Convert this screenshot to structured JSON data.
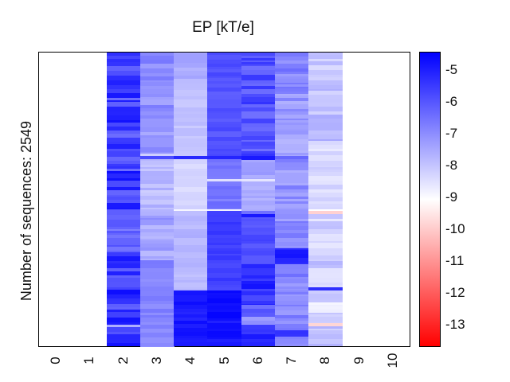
{
  "figure": {
    "title": "EP [kT/e]",
    "ylabel": "Number of sequences: 2549"
  },
  "chart_data": {
    "type": "heatmap",
    "title": "EP [kT/e]",
    "ylabel": "Number of sequences: 2549",
    "n_sequences": 2549,
    "x_ticks": [
      "0",
      "1",
      "2",
      "3",
      "4",
      "5",
      "6",
      "7",
      "8",
      "9",
      "10"
    ],
    "n_cols": 11,
    "empty_columns": [
      0,
      1,
      9,
      10
    ],
    "grid": false,
    "colorbar": {
      "tick_labels": [
        "-5",
        "-6",
        "-7",
        "-8",
        "-9",
        "-10",
        "-11",
        "-12",
        "-13"
      ],
      "tick_values": [
        -5,
        -6,
        -7,
        -8,
        -9,
        -10,
        -11,
        -12,
        -13
      ],
      "vmin": -13.68,
      "vmax": -4.45,
      "color_low": "#ff0000",
      "color_mid": "#ffffff",
      "color_high": "#0000ff",
      "position": "right"
    },
    "columns": {
      "2": [
        [
          0,
          0.536,
          -5.6,
          0.9
        ],
        [
          0.536,
          0.68,
          -6.4,
          0.5
        ],
        [
          0.68,
          0.926,
          -5.5,
          0.8
        ],
        [
          0.926,
          0.934,
          -7.6,
          0.1
        ],
        [
          0.934,
          1,
          -5.4,
          0.7
        ]
      ],
      "3": [
        [
          0,
          0.345,
          -7.1,
          0.5
        ],
        [
          0.345,
          0.352,
          -8.2,
          0.1
        ],
        [
          0.352,
          0.362,
          -5.8,
          0.2
        ],
        [
          0.362,
          0.533,
          -7.85,
          0.35
        ],
        [
          0.533,
          0.708,
          -7.4,
          0.45
        ],
        [
          0.708,
          1,
          -6.85,
          0.25
        ]
      ],
      "4": [
        [
          0,
          0.09,
          -7.6,
          0.3
        ],
        [
          0.09,
          0.352,
          -7.95,
          0.2
        ],
        [
          0.352,
          0.362,
          -5.2,
          0.15
        ],
        [
          0.362,
          0.533,
          -8.35,
          0.15
        ],
        [
          0.533,
          0.54,
          -8.9,
          0.05
        ],
        [
          0.54,
          0.667,
          -7.75,
          0.2
        ],
        [
          0.667,
          0.81,
          -7.85,
          0.2
        ],
        [
          0.81,
          1,
          -4.9,
          0.25
        ]
      ],
      "5": [
        [
          0,
          0.352,
          -5.95,
          0.25
        ],
        [
          0.352,
          0.362,
          -5.1,
          0.1
        ],
        [
          0.362,
          0.431,
          -6.55,
          0.2
        ],
        [
          0.431,
          0.439,
          -8.5,
          0.1
        ],
        [
          0.439,
          0.533,
          -6.6,
          0.25
        ],
        [
          0.533,
          0.54,
          -8.8,
          0.05
        ],
        [
          0.54,
          0.81,
          -5.6,
          0.25
        ],
        [
          0.81,
          0.913,
          -4.65,
          0.15
        ],
        [
          0.913,
          1,
          -4.85,
          0.3
        ]
      ],
      "6": [
        [
          0,
          0.352,
          -5.9,
          0.6
        ],
        [
          0.352,
          0.365,
          -4.9,
          0.1
        ],
        [
          0.365,
          0.431,
          -7.4,
          0.25
        ],
        [
          0.431,
          0.439,
          -8.6,
          0.1
        ],
        [
          0.439,
          0.538,
          -7.5,
          0.25
        ],
        [
          0.538,
          0.549,
          -6.5,
          0.2
        ],
        [
          0.549,
          0.56,
          -4.9,
          0.1
        ],
        [
          0.56,
          0.721,
          -5.85,
          0.3
        ],
        [
          0.721,
          0.86,
          -5.3,
          0.5
        ],
        [
          0.86,
          0.899,
          -6.1,
          0.4
        ],
        [
          0.899,
          0.926,
          -7.0,
          0.3
        ],
        [
          0.926,
          1,
          -5.3,
          0.6
        ]
      ],
      "7": [
        [
          0,
          0.14,
          -6.9,
          0.5
        ],
        [
          0.14,
          0.352,
          -7.25,
          0.5
        ],
        [
          0.352,
          0.362,
          -6.3,
          0.2
        ],
        [
          0.362,
          0.533,
          -7.1,
          0.5
        ],
        [
          0.533,
          0.667,
          -7.0,
          0.5
        ],
        [
          0.667,
          0.721,
          -5.1,
          0.3
        ],
        [
          0.721,
          0.81,
          -6.9,
          0.5
        ],
        [
          0.81,
          0.945,
          -6.9,
          0.55
        ],
        [
          0.945,
          0.967,
          -5.4,
          0.2
        ],
        [
          0.967,
          1,
          -6.8,
          0.4
        ]
      ],
      "8": [
        [
          0,
          0.06,
          -8.1,
          0.35
        ],
        [
          0.06,
          0.3,
          -7.9,
          0.45
        ],
        [
          0.3,
          0.355,
          -8.5,
          0.3
        ],
        [
          0.355,
          0.533,
          -8.4,
          0.3
        ],
        [
          0.533,
          0.5396,
          -9.05,
          0.05
        ],
        [
          0.5396,
          0.5505,
          -9.9,
          0.05
        ],
        [
          0.5505,
          0.667,
          -8.3,
          0.4
        ],
        [
          0.667,
          0.735,
          -8.0,
          0.45
        ],
        [
          0.735,
          0.8,
          -8.6,
          0.35
        ],
        [
          0.8,
          0.811,
          -5.3,
          0.1
        ],
        [
          0.811,
          0.85,
          -8.2,
          0.35
        ],
        [
          0.85,
          0.885,
          -8.8,
          0.2
        ],
        [
          0.885,
          0.921,
          -8.2,
          0.3
        ],
        [
          0.921,
          0.932,
          -9.8,
          0.05
        ],
        [
          0.932,
          1,
          -7.9,
          0.45
        ]
      ]
    }
  }
}
